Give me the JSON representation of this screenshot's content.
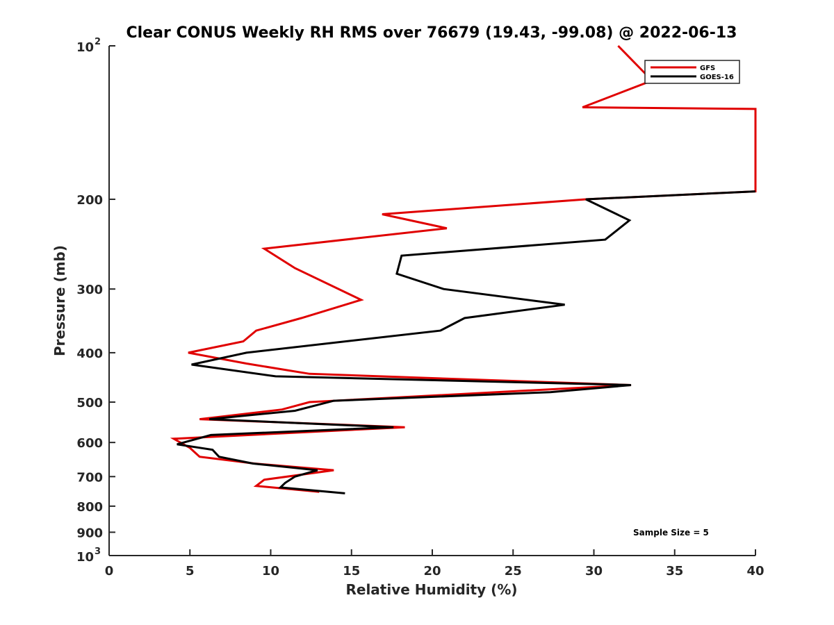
{
  "chart_data": {
    "type": "line",
    "title": "Clear CONUS Weekly RH RMS over 76679 (19.43, -99.08) @ 2022-06-13",
    "xlabel": "Relative Humidity (%)",
    "ylabel": "Pressure (mb)",
    "xlim": [
      0,
      40
    ],
    "ylim": [
      100,
      1000
    ],
    "y_scale": "log",
    "y_reversed": true,
    "x_ticks": [
      0,
      5,
      10,
      15,
      20,
      25,
      30,
      35,
      40
    ],
    "x_tick_labels": [
      "0",
      "5",
      "10",
      "15",
      "20",
      "25",
      "30",
      "35",
      "40"
    ],
    "y_ticks": [
      200,
      300,
      400,
      500,
      600,
      700,
      800,
      900
    ],
    "y_tick_labels": [
      "200",
      "300",
      "400",
      "500",
      "600",
      "700",
      "800",
      "900"
    ],
    "y_ends": [
      {
        "value": 100,
        "base": "10",
        "exp": "2"
      },
      {
        "value": 1000,
        "base": "10",
        "exp": "3"
      }
    ],
    "grid": false,
    "legend_position": "top-right",
    "annotation": "Sample Size = 5",
    "series": [
      {
        "name": "GFS",
        "color": "#e00000",
        "points": [
          [
            31.5,
            100
          ],
          [
            33.6,
            117
          ],
          [
            29.3,
            132
          ],
          [
            40.0,
            133
          ],
          [
            40.0,
            193
          ],
          [
            29.5,
            200
          ],
          [
            16.9,
            214
          ],
          [
            20.9,
            228
          ],
          [
            9.6,
            250
          ],
          [
            11.5,
            273
          ],
          [
            15.6,
            315
          ],
          [
            11.9,
            342
          ],
          [
            9.1,
            362
          ],
          [
            8.3,
            380
          ],
          [
            4.9,
            400
          ],
          [
            8.5,
            420
          ],
          [
            12.4,
            440
          ],
          [
            32.3,
            463
          ],
          [
            12.4,
            500
          ],
          [
            10.7,
            517
          ],
          [
            5.6,
            540
          ],
          [
            18.3,
            560
          ],
          [
            4.0,
            590
          ],
          [
            5.0,
            615
          ],
          [
            5.6,
            640
          ],
          [
            9.0,
            660
          ],
          [
            13.9,
            680
          ],
          [
            9.6,
            710
          ],
          [
            9.1,
            730
          ],
          [
            13.0,
            750
          ]
        ]
      },
      {
        "name": "GOES-16",
        "color": "#000000",
        "points": [
          [
            40.0,
            193
          ],
          [
            29.5,
            200
          ],
          [
            32.2,
            220
          ],
          [
            30.7,
            240
          ],
          [
            18.1,
            258
          ],
          [
            17.8,
            280
          ],
          [
            20.7,
            300
          ],
          [
            28.2,
            322
          ],
          [
            22.0,
            342
          ],
          [
            20.5,
            362
          ],
          [
            8.5,
            400
          ],
          [
            5.1,
            422
          ],
          [
            10.3,
            445
          ],
          [
            32.3,
            463
          ],
          [
            27.3,
            478
          ],
          [
            13.9,
            497
          ],
          [
            11.5,
            520
          ],
          [
            6.2,
            540
          ],
          [
            17.6,
            560
          ],
          [
            6.3,
            580
          ],
          [
            4.2,
            605
          ],
          [
            6.4,
            620
          ],
          [
            6.8,
            640
          ],
          [
            8.9,
            660
          ],
          [
            12.9,
            680
          ],
          [
            11.5,
            700
          ],
          [
            10.9,
            720
          ],
          [
            10.6,
            735
          ],
          [
            14.6,
            755
          ]
        ]
      }
    ]
  }
}
